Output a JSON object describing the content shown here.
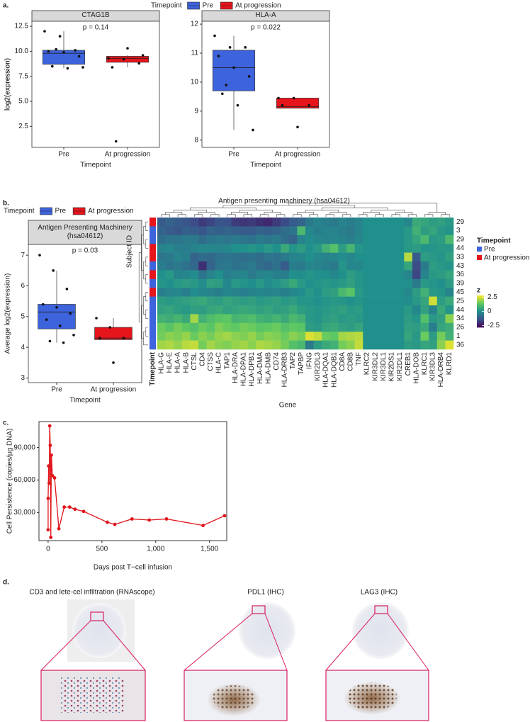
{
  "panel_labels": [
    "a.",
    "b.",
    "c.",
    "d."
  ],
  "chart_data": [
    {
      "type": "box",
      "facet_title": "CTAG1B",
      "annotation": "p = 0.14",
      "ylabel": "log2(expression)",
      "xlabel": "Timepoint",
      "legend_title": "Timepoint",
      "categories": [
        "Pre",
        "At progression"
      ],
      "ylim": [
        0.4,
        13.0
      ],
      "yticks": [
        2.5,
        {
          "value": 5,
          "label": "5.0"
        },
        7.5,
        {
          "value": 10,
          "label": "10.0"
        },
        12.5
      ],
      "series": [
        {
          "name": "Pre",
          "color": "#3d63dd",
          "box": {
            "min": 8.3,
            "q1": 8.7,
            "median": 9.8,
            "q3": 10.1,
            "max": 12.0
          },
          "points": [
            12.0,
            11.5,
            10.1,
            10.0,
            9.9,
            9.5,
            8.5,
            8.3,
            8.4,
            10.2
          ]
        },
        {
          "name": "At progression",
          "color": "#e6141b",
          "box": {
            "min": 8.4,
            "q1": 8.9,
            "median": 9.3,
            "q3": 9.5,
            "max": 9.6
          },
          "points": [
            9.3,
            9.2,
            8.8,
            8.4,
            10.3,
            9.6,
            1.0
          ]
        }
      ]
    },
    {
      "type": "box",
      "facet_title": "HLA-A",
      "annotation": "p = 0.022",
      "ylabel": "log2(expression)",
      "xlabel": "Timepoint",
      "categories": [
        "Pre",
        "At progression"
      ],
      "ylim": [
        7.75,
        12.1
      ],
      "yticks": [
        8,
        9,
        10,
        11,
        12
      ],
      "series": [
        {
          "color": "#3d63dd",
          "box": {
            "min": 8.35,
            "q1": 9.7,
            "median": 10.5,
            "q3": 11.1,
            "max": 11.6
          },
          "points": [
            11.6,
            11.2,
            11.2,
            10.9,
            10.5,
            10.2,
            9.6,
            9.2,
            8.35,
            9.9
          ]
        },
        {
          "color": "#e6141b",
          "box": {
            "min": 9.1,
            "q1": 9.1,
            "median": 9.15,
            "q3": 9.45,
            "max": 9.45
          },
          "points": [
            9.45,
            9.45,
            9.2,
            9.2,
            8.45
          ]
        }
      ]
    },
    {
      "type": "box",
      "facet_title": "Antigen Presenting Machinery (hsa04612)",
      "annotation": "p = 0.03",
      "ylabel": "Average log2(expression)",
      "xlabel": "Timepoint",
      "legend_title": "Timepoint",
      "categories": [
        "Pre",
        "At progression"
      ],
      "ylim": [
        2.85,
        7.35
      ],
      "yticks": [
        3,
        4,
        5,
        6,
        7
      ],
      "series": [
        {
          "name": "Pre",
          "color": "#3d63dd",
          "box": {
            "min": 4.15,
            "q1": 4.6,
            "median": 5.15,
            "q3": 5.4,
            "max": 6.5
          },
          "points": [
            7.0,
            6.5,
            5.9,
            5.4,
            5.3,
            5.1,
            4.9,
            4.7,
            4.4,
            4.2,
            4.15
          ]
        },
        {
          "name": "At progression",
          "color": "#e6141b",
          "box": {
            "min": 4.25,
            "q1": 4.25,
            "median": 4.3,
            "q3": 4.65,
            "max": 4.95
          },
          "points": [
            4.95,
            4.65,
            4.3,
            4.3,
            3.5
          ]
        }
      ]
    },
    {
      "type": "heatmap",
      "title": "Antigen presenting machinery (hsa04612)",
      "xlabel": "Gene",
      "ylabel": "Subject ID",
      "columns": [
        "HLA-G",
        "HLA-E",
        "HLA-A",
        "HLA-B",
        "CTSL",
        "CD4",
        "CTSS",
        "HLA-C",
        "TAP1",
        "HLA-DRA",
        "HLA-DPA1",
        "HLA-DPB1",
        "HLA-DMA",
        "HLA-DMB",
        "CD74",
        "HLA-DRB3",
        "TAP2",
        "TAPBP",
        "IFNG",
        "KIR2DL3",
        "HLA-DQA1",
        "HLA-DQB1",
        "CD8A",
        "CD8B",
        "TNF",
        "KLRC2",
        "KIR3DL2",
        "KIR3DL1",
        "KIR2DS1",
        "KIR2DL1",
        "CREB1",
        "HLA-DOB",
        "KLRC1",
        "KIR3DL3",
        "HLA-DRB4",
        "KLRD1"
      ],
      "rows": [
        "29",
        "3",
        "29",
        "44",
        "33",
        "43",
        "36",
        "39",
        "45",
        "25",
        "44",
        "34",
        "26",
        "1",
        "36"
      ],
      "row_timepoint": [
        "At progression",
        "Pre",
        "Pre",
        "At progression",
        "At progression",
        "Pre",
        "At progression",
        "Pre",
        "At progression",
        "Pre",
        "Pre",
        "Pre",
        "Pre",
        "Pre",
        "Pre"
      ],
      "values": [
        [
          -1.2,
          -1.0,
          -1.2,
          -1.3,
          -1.5,
          -1.8,
          -1.6,
          -1.3,
          -1.4,
          -1.8,
          -1.9,
          -1.8,
          -2.0,
          -2.1,
          -1.8,
          -1.5,
          -1.2,
          -1.0,
          -0.5,
          -0.3,
          -0.4,
          -0.5,
          -0.3,
          -0.4,
          -0.3,
          0,
          0,
          0,
          0,
          0,
          -0.2,
          0.6,
          0.5,
          0.3,
          0.4,
          0.2
        ],
        [
          -1.0,
          -1.2,
          -1.3,
          -1.1,
          -1.2,
          -1.3,
          -1.0,
          -1.1,
          -1.0,
          -1.1,
          -1.2,
          -1.2,
          -1.0,
          -1.1,
          -1.0,
          -0.8,
          -0.6,
          1.0,
          -0.2,
          -0.4,
          -0.3,
          -0.3,
          -0.4,
          -0.5,
          -0.3,
          0,
          0,
          0,
          0,
          0,
          0.2,
          0.8,
          0.3,
          0.5,
          0.2,
          0.1
        ],
        [
          -0.8,
          -0.6,
          -0.6,
          -0.5,
          -0.5,
          -0.8,
          -0.6,
          -0.5,
          -0.6,
          -0.5,
          -0.6,
          -0.7,
          -0.5,
          -0.6,
          -0.5,
          -0.8,
          -1.0,
          -0.3,
          -0.1,
          -0.2,
          -0.3,
          -0.2,
          -0.3,
          -0.4,
          -0.2,
          0,
          0,
          0,
          0,
          0,
          0.2,
          0.5,
          1.0,
          0.2,
          0.3,
          1.0
        ],
        [
          -0.3,
          -0.2,
          -0.4,
          -0.4,
          -0.3,
          -0.2,
          -0.2,
          -0.3,
          -0.2,
          0,
          0,
          0.1,
          0,
          0.2,
          0,
          0.6,
          0.1,
          0.3,
          0,
          0.2,
          0.8,
          1.2,
          0.3,
          0.9,
          0.1,
          0,
          0,
          0,
          0,
          0,
          0.2,
          0.3,
          0.1,
          0.1,
          0.2,
          0.2
        ],
        [
          -0.6,
          -0.5,
          -0.3,
          -0.4,
          -1.0,
          -0.8,
          -0.9,
          -0.7,
          -0.6,
          -0.7,
          -0.8,
          -0.7,
          -0.8,
          -0.6,
          -0.7,
          -0.5,
          -0.3,
          -0.2,
          0,
          -0.2,
          -0.3,
          -0.2,
          -0.1,
          -0.2,
          0,
          0,
          0,
          0,
          0,
          0,
          2.2,
          -1.2,
          0.3,
          0.2,
          0.1,
          0.4
        ],
        [
          -0.4,
          -0.6,
          -0.5,
          -0.7,
          -0.9,
          -2.0,
          -1.0,
          -0.6,
          -0.5,
          -0.7,
          -0.6,
          -0.5,
          -0.8,
          -0.9,
          -0.7,
          -1.2,
          -0.4,
          -0.5,
          -0.2,
          -0.3,
          -0.4,
          -0.5,
          0.1,
          -0.2,
          -0.2,
          0,
          0,
          0,
          0,
          0,
          0.5,
          -1.5,
          -0.5,
          0.3,
          0.2,
          0.1
        ],
        [
          0,
          0.2,
          -0.3,
          -0.2,
          -0.1,
          -0.6,
          -0.3,
          0,
          -0.4,
          -0.3,
          -0.2,
          -0.5,
          -0.3,
          -0.2,
          -0.4,
          -0.4,
          0,
          -0.1,
          0.1,
          0,
          0,
          -0.2,
          0,
          0.3,
          0.1,
          0,
          0,
          0,
          0,
          0,
          -0.3,
          -1.6,
          -0.3,
          0.2,
          0.3,
          0.5
        ],
        [
          0.1,
          0,
          0.2,
          0.3,
          0.2,
          -0.1,
          0.4,
          0.3,
          -0.2,
          0.2,
          0.1,
          0,
          0.2,
          -0.1,
          0.1,
          0.3,
          0.6,
          0.2,
          0,
          0.1,
          0.2,
          0.1,
          0.2,
          0.4,
          0.1,
          0,
          0,
          0,
          0,
          0,
          0,
          -0.5,
          0.2,
          0.1,
          0,
          0.3
        ],
        [
          -0.4,
          -0.3,
          -0.2,
          -0.4,
          -0.1,
          -0.2,
          -0.3,
          -0.4,
          -0.2,
          -0.3,
          -0.4,
          -0.3,
          -0.2,
          -0.3,
          -0.3,
          -0.4,
          -0.2,
          -0.1,
          0.2,
          0,
          0.3,
          0.4,
          1.0,
          1.3,
          0.2,
          0,
          0,
          0,
          0,
          0,
          -0.2,
          0.3,
          0.8,
          0.2,
          0.1,
          -0.3
        ],
        [
          0.3,
          0.2,
          0.3,
          0.4,
          0.5,
          0.6,
          0.4,
          0.3,
          0.5,
          0.4,
          0.3,
          0.4,
          0.2,
          0.3,
          0.4,
          0.2,
          0.3,
          0.1,
          0.1,
          0,
          0.1,
          0.2,
          0.1,
          0,
          0.1,
          0,
          0,
          0,
          0,
          0,
          -0.1,
          0.2,
          0.5,
          2.4,
          0.3,
          0.6
        ],
        [
          0.4,
          0.5,
          0.3,
          0.2,
          0.4,
          0.3,
          0.5,
          0.6,
          0.4,
          0.5,
          0.6,
          0.5,
          0.4,
          0.5,
          0.3,
          0.4,
          0.6,
          0.3,
          0.2,
          0.1,
          0.2,
          0.3,
          0.4,
          0.2,
          0.3,
          0,
          0,
          0,
          0,
          0,
          0.2,
          -0.2,
          0.4,
          -0.3,
          0.6,
          0.1
        ],
        [
          0.8,
          0.7,
          0.9,
          0.6,
          2.0,
          0.8,
          1.1,
          1.3,
          1.4,
          0.9,
          1.0,
          1.1,
          0.8,
          0.7,
          0.9,
          0.6,
          1.0,
          0.8,
          0.2,
          0.1,
          0.3,
          0.4,
          0.2,
          0.3,
          0.2,
          0,
          0,
          0,
          0,
          0,
          0.3,
          0.1,
          1.2,
          0.2,
          0.4,
          1.8
        ],
        [
          1.5,
          1.3,
          1.6,
          1.4,
          1.2,
          1.5,
          1.3,
          1.7,
          1.5,
          1.4,
          1.6,
          1.5,
          1.3,
          1.4,
          1.5,
          1.2,
          1.4,
          1.3,
          0.3,
          0.2,
          0.5,
          0.6,
          0.4,
          0.3,
          0.5,
          0,
          0,
          0,
          0,
          0,
          0.4,
          0.3,
          0.6,
          -0.4,
          0.5,
          0.7
        ],
        [
          1.6,
          1.8,
          1.7,
          1.9,
          1.5,
          1.8,
          1.6,
          1.9,
          2.0,
          1.8,
          1.7,
          1.9,
          1.6,
          1.8,
          1.7,
          1.5,
          1.8,
          1.6,
          2.5,
          2.3,
          1.5,
          1.4,
          2.0,
          2.1,
          2.2,
          0,
          0,
          0,
          0,
          0,
          0.5,
          0.2,
          1.5,
          0.3,
          1.6,
          0.8
        ],
        [
          2.0,
          2.1,
          1.9,
          2.2,
          2.3,
          1.6,
          2.0,
          1.8,
          1.7,
          1.9,
          2.0,
          1.8,
          2.1,
          2.0,
          1.9,
          1.6,
          1.2,
          1.0,
          -0.5,
          0.3,
          0.6,
          0.8,
          1.6,
          1.8,
          2.3,
          0,
          0,
          0,
          0,
          0,
          0.3,
          0.2,
          0.5,
          0.4,
          1.8,
          2.5
        ]
      ],
      "zlim": [
        -2.8,
        2.8
      ],
      "zticks": [
        2.5,
        0,
        -2.5
      ],
      "colorbar_title": "z",
      "annotation_label": "Timepoint",
      "annotation": {
        "title": "Timepoint",
        "names": [
          "Pre",
          "At progression"
        ],
        "colors": [
          "#3d63dd",
          "#e6141b"
        ]
      }
    },
    {
      "type": "line",
      "xlabel": "Days post T−cell infusion",
      "ylabel": "Cell Persistence (copies/µg DNA)",
      "color": "#e0141b",
      "x": [
        0,
        0,
        5,
        10,
        15,
        20,
        25,
        30,
        40,
        60,
        100,
        150,
        200,
        250,
        330,
        550,
        620,
        780,
        940,
        1100,
        1440,
        1640
      ],
      "values": [
        14000,
        43000,
        73000,
        57000,
        110000,
        92000,
        7000,
        83000,
        64000,
        62000,
        15000,
        35000,
        35000,
        33000,
        31000,
        21000,
        19000,
        24000,
        23000,
        24000,
        18000,
        27000
      ],
      "xlim": [
        -85,
        1660
      ],
      "xticks": [
        0,
        500,
        {
          "value": 1000,
          "label": "1,000"
        },
        {
          "value": 1500,
          "label": "1,500"
        }
      ],
      "ylim": [
        4000,
        114000
      ],
      "yticks": [
        {
          "value": 30000,
          "label": "30,000"
        },
        {
          "value": 60000,
          "label": "60,000"
        },
        {
          "value": 90000,
          "label": "90,000"
        }
      ]
    }
  ],
  "images": {
    "titles": [
      "CD3 and lete-cel infiltration (RNAscope)",
      "PDL1 (IHC)",
      "LAG3 (IHC)"
    ]
  }
}
